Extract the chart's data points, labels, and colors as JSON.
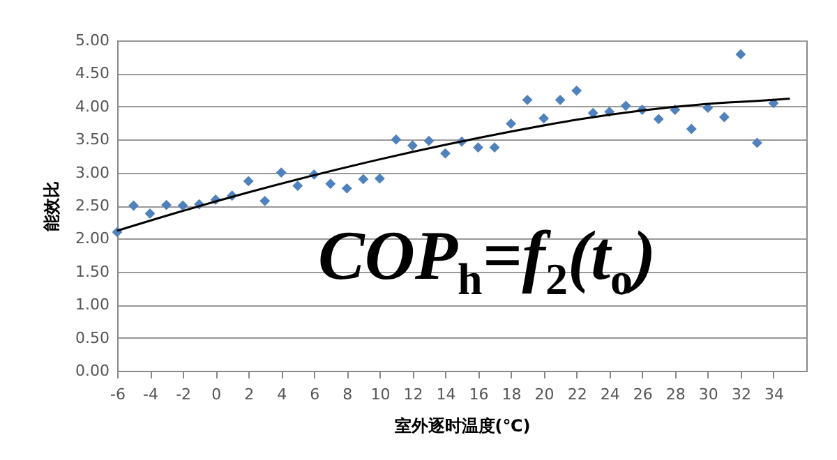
{
  "chart_data": {
    "type": "scatter",
    "xlabel": "室外逐时温度(℃)",
    "ylabel": "能效比",
    "annotations": [
      "COP$_{h}$=f$_{2}$(t$_{o}$)"
    ],
    "xlim": [
      -6,
      36
    ],
    "xticks": [
      -6,
      -4,
      -2,
      0,
      2,
      4,
      6,
      8,
      10,
      12,
      14,
      16,
      18,
      20,
      22,
      24,
      26,
      28,
      30,
      32,
      34
    ],
    "ylim": [
      0,
      5
    ],
    "yticks": [
      {
        "value": 0,
        "label": "0.00"
      },
      {
        "value": 0.5,
        "label": "0.50"
      },
      {
        "value": 1,
        "label": "1.00"
      },
      {
        "value": 1.5,
        "label": "1.50"
      },
      {
        "value": 2,
        "label": "2.00"
      },
      {
        "value": 2.5,
        "label": "2.50"
      },
      {
        "value": 3,
        "label": "3.00"
      },
      {
        "value": 3.5,
        "label": "3.50"
      },
      {
        "value": 4,
        "label": "4.00"
      },
      {
        "value": 4.5,
        "label": "4.50"
      },
      {
        "value": 5,
        "label": "5.00"
      }
    ],
    "grid": "y",
    "marker": "diamond",
    "series": [
      {
        "color": "#4f81bd",
        "x": [
          -6,
          -5,
          -4,
          -3,
          -2,
          -1,
          0,
          1,
          2,
          3,
          4,
          5,
          6,
          7,
          8,
          9,
          10,
          11,
          12,
          13,
          14,
          15,
          16,
          17,
          18,
          19,
          20,
          21,
          22,
          23,
          24,
          25,
          26,
          27,
          28,
          29,
          30,
          31,
          32,
          33,
          34
        ],
        "values": [
          2.1,
          2.5,
          2.38,
          2.51,
          2.5,
          2.52,
          2.59,
          2.65,
          2.87,
          2.57,
          3.0,
          2.8,
          2.97,
          2.83,
          2.76,
          2.9,
          2.91,
          3.5,
          3.41,
          3.48,
          3.29,
          3.47,
          3.38,
          3.38,
          3.74,
          4.1,
          3.82,
          4.1,
          4.24,
          3.9,
          3.92,
          4.01,
          3.95,
          3.81,
          3.95,
          3.66,
          3.98,
          3.84,
          4.79,
          3.45,
          4.05
        ]
      },
      {
        "type": "line",
        "marker": "none",
        "color": "#000000",
        "x": [
          -6,
          -2,
          2,
          6,
          10,
          14,
          18,
          22,
          26,
          30,
          34,
          35
        ],
        "values": [
          2.12,
          2.42,
          2.7,
          2.96,
          3.2,
          3.42,
          3.62,
          3.8,
          3.94,
          4.04,
          4.1,
          4.12
        ]
      }
    ]
  }
}
